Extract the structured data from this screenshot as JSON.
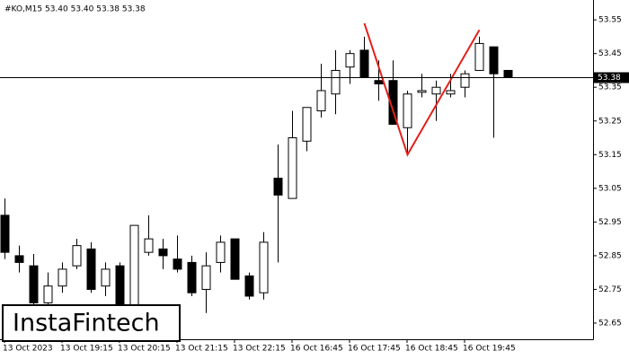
{
  "chart_data": {
    "type": "candlestick",
    "title": "#KO,M15  53.40 53.40 53.38 53.38",
    "watermark": "InstaFintech",
    "categories": [
      "13 Oct 2023",
      null,
      null,
      null,
      "13 Oct 19:15",
      null,
      null,
      null,
      "13 Oct 20:15",
      null,
      null,
      null,
      "13 Oct 21:15",
      null,
      null,
      null,
      "13 Oct 22:15",
      null,
      null,
      null,
      "16 Oct 16:45",
      null,
      null,
      null,
      "16 Oct 17:45",
      null,
      null,
      null,
      "16 Oct 18:45",
      null,
      null,
      null,
      "16 Oct 19:45",
      null,
      null,
      null
    ],
    "open": [
      52.97,
      52.85,
      52.82,
      52.71,
      52.76,
      52.82,
      52.87,
      52.76,
      52.82,
      52.69,
      52.86,
      52.87,
      52.84,
      52.83,
      52.75,
      52.83,
      52.9,
      52.79,
      52.74,
      53.08,
      53.02,
      53.19,
      53.28,
      53.33,
      53.41,
      53.46,
      53.37,
      53.37,
      53.23,
      53.335,
      53.33,
      53.33,
      53.35,
      53.4,
      53.47,
      53.4
    ],
    "high": [
      53.02,
      52.88,
      52.855,
      52.8,
      52.83,
      52.9,
      52.89,
      52.83,
      52.83,
      52.94,
      52.97,
      52.9,
      52.91,
      52.85,
      52.86,
      52.91,
      52.9,
      52.8,
      52.92,
      53.18,
      53.28,
      53.29,
      53.42,
      53.46,
      53.46,
      53.5,
      53.43,
      53.43,
      53.34,
      53.39,
      53.37,
      53.39,
      53.4,
      53.5,
      53.47,
      53.4
    ],
    "low": [
      52.84,
      52.8,
      52.7,
      52.69,
      52.74,
      52.81,
      52.74,
      52.73,
      52.69,
      52.68,
      52.85,
      52.81,
      52.8,
      52.73,
      52.68,
      52.8,
      52.78,
      52.72,
      52.72,
      52.83,
      53.02,
      53.16,
      53.26,
      53.27,
      53.36,
      53.38,
      53.31,
      53.24,
      53.15,
      53.32,
      53.25,
      53.32,
      53.32,
      53.4,
      53.2,
      53.38
    ],
    "close": [
      52.86,
      52.83,
      52.71,
      52.76,
      52.81,
      52.88,
      52.75,
      52.81,
      52.7,
      52.94,
      52.9,
      52.85,
      52.81,
      52.74,
      52.82,
      52.89,
      52.78,
      52.73,
      52.89,
      53.03,
      53.2,
      53.29,
      53.34,
      53.4,
      53.45,
      53.38,
      53.36,
      53.24,
      53.33,
      53.34,
      53.35,
      53.34,
      53.39,
      53.48,
      53.39,
      53.38
    ],
    "up_color": "#ffffff",
    "down_color": "#000000",
    "last_price": 53.38,
    "pattern": {
      "color": "#e3201b",
      "points": [
        {
          "x": 25,
          "y": 53.54
        },
        {
          "x": 28,
          "y": 53.15
        },
        {
          "x": 33,
          "y": 53.52
        }
      ]
    },
    "ylim": [
      52.602,
      53.609
    ],
    "yticks": [
      53.55,
      53.45,
      53.35,
      53.25,
      53.15,
      53.05,
      52.95,
      52.85,
      52.75,
      52.65
    ]
  }
}
